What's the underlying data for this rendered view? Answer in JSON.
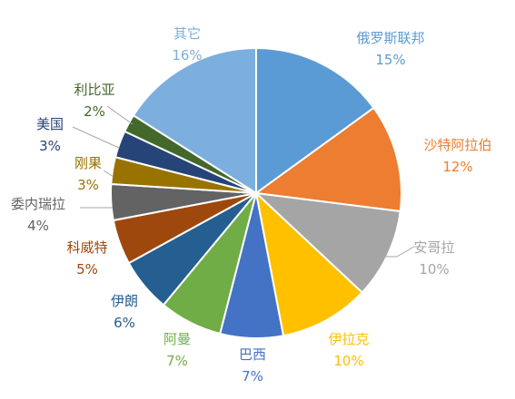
{
  "chart_data": {
    "type": "pie",
    "title": "",
    "start_angle_deg": 0,
    "direction": "clockwise",
    "slices": [
      {
        "label": "俄罗斯联邦",
        "value": 15,
        "pct_text": "15%",
        "color": "#5b9bd5"
      },
      {
        "label": "沙特阿拉伯",
        "value": 12,
        "pct_text": "12%",
        "color": "#ed7d31"
      },
      {
        "label": "安哥拉",
        "value": 10,
        "pct_text": "10%",
        "color": "#a5a5a5"
      },
      {
        "label": "伊拉克",
        "value": 10,
        "pct_text": "10%",
        "color": "#ffc000"
      },
      {
        "label": "巴西",
        "value": 7,
        "pct_text": "7%",
        "color": "#4472c4"
      },
      {
        "label": "阿曼",
        "value": 7,
        "pct_text": "7%",
        "color": "#70ad47"
      },
      {
        "label": "伊朗",
        "value": 6,
        "pct_text": "6%",
        "color": "#255e91"
      },
      {
        "label": "科威特",
        "value": 5,
        "pct_text": "5%",
        "color": "#9e480e"
      },
      {
        "label": "委内瑞拉",
        "value": 4,
        "pct_text": "4%",
        "color": "#636363"
      },
      {
        "label": "刚果",
        "value": 3,
        "pct_text": "3%",
        "color": "#997300"
      },
      {
        "label": "美国",
        "value": 3,
        "pct_text": "3%",
        "color": "#264478"
      },
      {
        "label": "利比亚",
        "value": 2,
        "pct_text": "2%",
        "color": "#43682b"
      },
      {
        "label": "其它",
        "value": 16,
        "pct_text": "16%",
        "color": "#7cafdd"
      }
    ],
    "label_colors": {
      "俄罗斯联邦": "#5b9bd5",
      "沙特阿拉伯": "#ed7d31",
      "安哥拉": "#a5a5a5",
      "伊拉克": "#ffc000",
      "巴西": "#4472c4",
      "阿曼": "#70ad47",
      "伊朗": "#255e91",
      "科威特": "#9e480e",
      "委内瑞拉": "#636363",
      "刚果": "#997300",
      "美国": "#264478",
      "利比亚": "#43682b",
      "其它": "#7cafdd"
    }
  }
}
